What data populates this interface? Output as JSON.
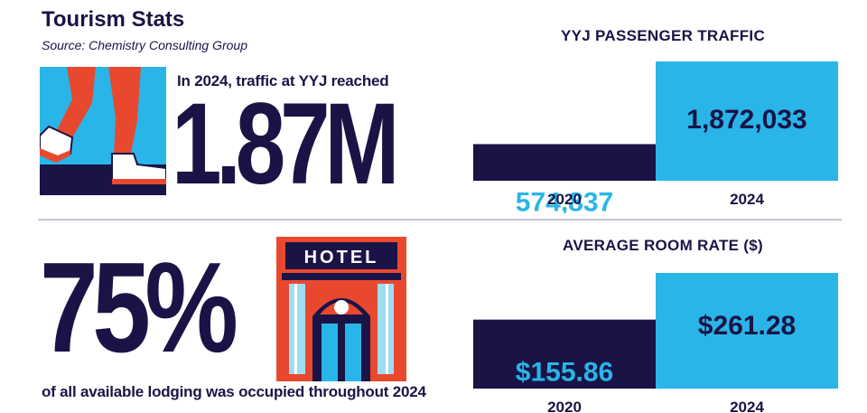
{
  "header": {
    "title": "Tourism Stats",
    "source": "Source: Chemistry Consulting Group"
  },
  "traffic_stat": {
    "intro": "In 2024, traffic at YYJ reached",
    "value": "1.87M"
  },
  "occupancy_stat": {
    "value": "75%",
    "caption": "of all available lodging was occupied throughout 2024",
    "sign_text": "HOTEL"
  },
  "colors": {
    "navy": "#1a1446",
    "cyan": "#29b5e8",
    "orange": "#e8492e",
    "light_blue": "#9fdcf2"
  },
  "chart_data": [
    {
      "type": "bar",
      "title": "YYJ PASSENGER TRAFFIC",
      "categories": [
        "2020",
        "2024"
      ],
      "values": [
        574837,
        1872033
      ],
      "value_labels": [
        "574,837",
        "1,872,033"
      ],
      "ylim": [
        0,
        1872033
      ],
      "grid": false
    },
    {
      "type": "bar",
      "title": "AVERAGE ROOM RATE ($)",
      "categories": [
        "2020",
        "2024"
      ],
      "values": [
        155.86,
        261.28
      ],
      "value_labels": [
        "$155.86",
        "$261.28"
      ],
      "ylim": [
        0,
        261.28
      ],
      "grid": false
    }
  ]
}
